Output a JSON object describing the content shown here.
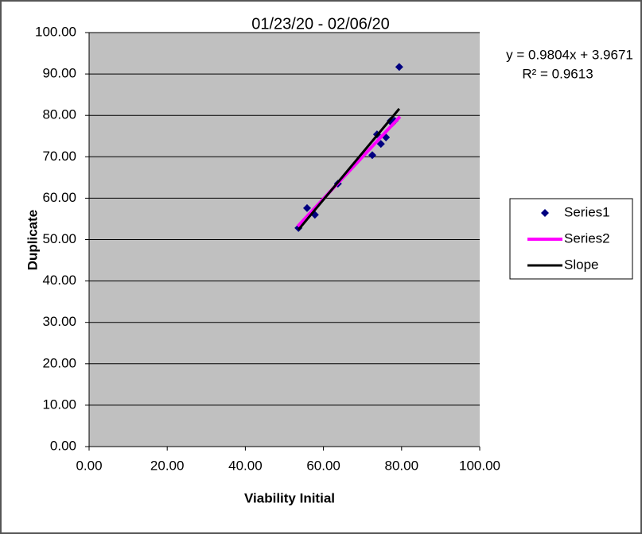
{
  "chart_data": {
    "type": "scatter",
    "title": "01/23/20 - 02/06/20",
    "x_label": "Viability Initial",
    "y_label": "Duplicate",
    "annotations": [
      "y = 0.9804x + 3.9671",
      "R² = 0.9613"
    ],
    "xlim": [
      0,
      100
    ],
    "ylim": [
      0,
      100
    ],
    "xticks": [
      {
        "value": 0,
        "label": "0.00"
      },
      {
        "value": 20,
        "label": "20.00"
      },
      {
        "value": 40,
        "label": "40.00"
      },
      {
        "value": 60,
        "label": "60.00"
      },
      {
        "value": 80,
        "label": "80.00"
      },
      {
        "value": 100,
        "label": "100.00"
      }
    ],
    "yticks": [
      {
        "value": 0,
        "label": "0.00"
      },
      {
        "value": 10,
        "label": "10.00"
      },
      {
        "value": 20,
        "label": "20.00"
      },
      {
        "value": 30,
        "label": "30.00"
      },
      {
        "value": 40,
        "label": "40.00"
      },
      {
        "value": 50,
        "label": "50.00"
      },
      {
        "value": 60,
        "label": "60.00"
      },
      {
        "value": 70,
        "label": "70.00"
      },
      {
        "value": 80,
        "label": "80.00"
      },
      {
        "value": 90,
        "label": "90.00"
      },
      {
        "value": 100,
        "label": "100.00"
      }
    ],
    "grid": true,
    "legend": "right",
    "series": [
      {
        "name": "Series1",
        "color": "#000080",
        "style": "marker",
        "x": [
          53.6,
          55.8,
          57.8,
          63.7,
          72.5,
          73.7,
          74.7,
          76.0,
          77.2,
          77.6,
          78.2,
          79.4
        ],
        "values": [
          52.8,
          57.6,
          56.0,
          63.5,
          70.4,
          75.4,
          73.1,
          74.7,
          78.7,
          78.1,
          78.7,
          91.7
        ]
      },
      {
        "name": "Series2",
        "color": "#ff00ff",
        "style": "line",
        "width": 4,
        "x": [
          53.4,
          79.6
        ],
        "values": [
          53.2,
          79.7
        ]
      },
      {
        "name": "Slope",
        "color": "#000000",
        "style": "line",
        "width": 3,
        "x": [
          53.6,
          79.4
        ],
        "values": [
          52.4,
          81.6
        ]
      }
    ]
  }
}
